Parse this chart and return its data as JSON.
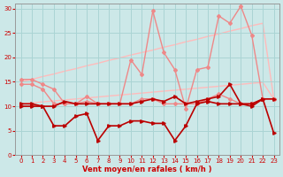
{
  "bg_color": "#cce8e8",
  "grid_color": "#aad4d4",
  "xlabel": "Vent moyen/en rafales ( km/h )",
  "xlabel_color": "#cc0000",
  "tick_color": "#cc0000",
  "xlim": [
    -0.5,
    23.5
  ],
  "ylim": [
    0,
    31
  ],
  "yticks": [
    0,
    5,
    10,
    15,
    20,
    25,
    30
  ],
  "xticks": [
    0,
    1,
    2,
    3,
    4,
    5,
    6,
    7,
    8,
    9,
    10,
    11,
    12,
    13,
    14,
    15,
    16,
    17,
    18,
    19,
    20,
    21,
    22,
    23
  ],
  "trend1": [
    10.5,
    10.7,
    10.9,
    11.1,
    11.3,
    11.5,
    11.7,
    11.9,
    12.1,
    12.3,
    12.5,
    12.7,
    12.9,
    13.1,
    13.3,
    13.5,
    13.7,
    13.9,
    14.1,
    14.3,
    14.5,
    14.7,
    14.9,
    11.5
  ],
  "trend2": [
    15.0,
    15.5,
    16.1,
    16.6,
    17.2,
    17.7,
    18.3,
    18.8,
    19.4,
    19.9,
    20.5,
    21.0,
    21.5,
    22.1,
    22.6,
    23.2,
    23.7,
    24.3,
    24.8,
    25.4,
    25.9,
    26.5,
    27.0,
    11.5
  ],
  "line_dark_red_1": [
    10.5,
    10.5,
    10.0,
    10.0,
    11.0,
    10.5,
    10.5,
    10.5,
    10.5,
    10.5,
    10.5,
    11.0,
    11.5,
    11.0,
    12.0,
    10.5,
    11.0,
    11.5,
    12.0,
    14.5,
    10.5,
    10.5,
    11.5,
    11.5
  ],
  "line_dark_red_2": [
    10.0,
    10.0,
    10.0,
    6.0,
    6.0,
    8.0,
    8.5,
    3.0,
    6.0,
    6.0,
    7.0,
    7.0,
    6.5,
    6.5,
    3.0,
    6.0,
    10.5,
    11.0,
    10.5,
    10.5,
    10.5,
    10.0,
    11.5,
    4.5
  ],
  "line_light_red_1": [
    14.5,
    14.5,
    13.5,
    10.5,
    10.5,
    10.5,
    11.0,
    10.5,
    10.5,
    10.5,
    19.5,
    16.5,
    29.5,
    21.0,
    17.5,
    9.5,
    17.5,
    18.0,
    28.5,
    27.0,
    30.5,
    24.5,
    11.5,
    11.5
  ],
  "line_light_red_2": [
    15.5,
    15.5,
    14.5,
    13.5,
    10.5,
    10.5,
    12.0,
    10.5,
    10.5,
    10.5,
    10.5,
    11.5,
    11.5,
    10.5,
    10.5,
    10.5,
    10.5,
    11.5,
    12.5,
    11.5,
    10.5,
    10.5,
    11.5,
    11.5
  ],
  "color_dark_red": "#bb0000",
  "color_light_red": "#ee8888",
  "color_trend": "#ffbbbb"
}
